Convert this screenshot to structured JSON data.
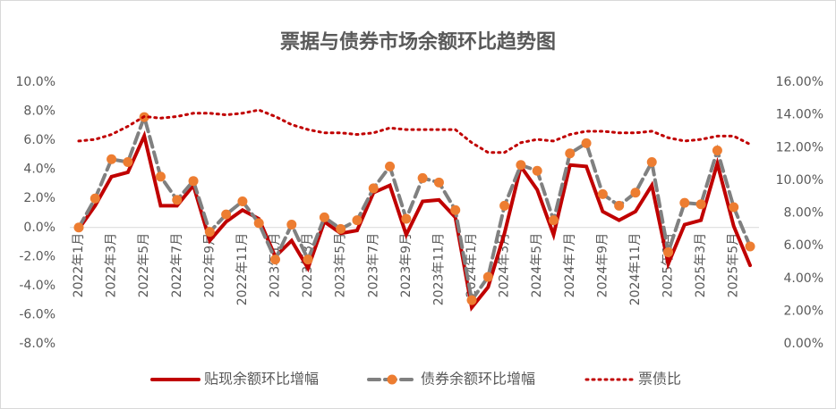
{
  "chart_data": {
    "type": "line",
    "title": "票据与债券市场余额环比趋势图",
    "categories": [
      "2022年1月",
      null,
      "2022年3月",
      null,
      "2022年5月",
      null,
      "2022年7月",
      null,
      "2022年9月",
      null,
      "2022年11月",
      null,
      "2023年1月",
      null,
      "2023年3月",
      null,
      "2023年5月",
      null,
      "2023年7月",
      null,
      "2023年9月",
      null,
      "2023年11月",
      null,
      "2024年1月",
      null,
      "2024年3月",
      null,
      "2024年5月",
      null,
      "2024年7月",
      null,
      "2024年9月",
      null,
      "2024年11月",
      null,
      "2025年1月",
      null,
      "2025年3月",
      null,
      "2025年5月",
      null
    ],
    "series": [
      {
        "name": "贴现余额环比增幅",
        "color": "#c00000",
        "style": "solid",
        "axis": "y",
        "values": [
          -0.1,
          1.5,
          3.5,
          3.8,
          6.3,
          1.5,
          1.5,
          2.9,
          -0.9,
          0.4,
          1.2,
          0.6,
          -2.0,
          -0.9,
          -2.8,
          0.4,
          -0.4,
          -0.2,
          2.4,
          2.9,
          -0.5,
          1.8,
          1.9,
          0.7,
          -5.5,
          -4.1,
          -0.4,
          4.2,
          2.6,
          -0.5,
          4.3,
          4.2,
          1.1,
          0.5,
          1.1,
          2.9,
          -2.5,
          0.2,
          0.5,
          4.4,
          0.1,
          -2.6
        ]
      },
      {
        "name": "债券余额环比增幅",
        "color": "#808080",
        "marker_color": "#ed7d31",
        "style": "dashed",
        "marker": "circle",
        "axis": "y",
        "values": [
          0.0,
          2.0,
          4.7,
          4.5,
          7.6,
          3.5,
          1.9,
          3.2,
          -0.3,
          0.9,
          1.8,
          0.3,
          -2.2,
          0.2,
          -2.2,
          0.7,
          -0.1,
          0.5,
          2.7,
          4.2,
          0.6,
          3.4,
          3.1,
          1.2,
          -5.0,
          -3.4,
          1.5,
          4.3,
          3.9,
          0.5,
          5.1,
          5.8,
          2.3,
          1.5,
          2.4,
          4.5,
          -1.7,
          1.7,
          1.6,
          5.3,
          1.4,
          -1.3
        ]
      },
      {
        "name": "票债比",
        "color": "#c00000",
        "style": "dotted",
        "axis": "y2",
        "values": [
          12.4,
          12.5,
          12.8,
          13.3,
          13.9,
          13.8,
          13.9,
          14.1,
          14.1,
          14.0,
          14.1,
          14.3,
          13.9,
          13.4,
          13.1,
          12.9,
          12.9,
          12.8,
          12.9,
          13.2,
          13.1,
          13.1,
          13.1,
          13.1,
          12.3,
          11.7,
          11.7,
          12.3,
          12.5,
          12.4,
          12.8,
          13.0,
          13.0,
          12.9,
          12.9,
          13.0,
          12.6,
          12.4,
          12.5,
          12.7,
          12.7,
          12.2
        ]
      }
    ],
    "ylim": [
      -8,
      10
    ],
    "yticks": [
      {
        "value": -8,
        "label": "-8.0%"
      },
      {
        "value": -6,
        "label": "-6.0%"
      },
      {
        "value": -4,
        "label": "-4.0%"
      },
      {
        "value": -2,
        "label": "-2.0%"
      },
      {
        "value": 0,
        "label": "0.0%"
      },
      {
        "value": 2,
        "label": "2.0%"
      },
      {
        "value": 4,
        "label": "4.0%"
      },
      {
        "value": 6,
        "label": "6.0%"
      },
      {
        "value": 8,
        "label": "8.0%"
      },
      {
        "value": 10,
        "label": "10.0%"
      }
    ],
    "y2lim": [
      0,
      16
    ],
    "y2ticks": [
      {
        "value": 0,
        "label": "0.00%"
      },
      {
        "value": 2,
        "label": "2.00%"
      },
      {
        "value": 4,
        "label": "4.00%"
      },
      {
        "value": 6,
        "label": "6.00%"
      },
      {
        "value": 8,
        "label": "8.00%"
      },
      {
        "value": 10,
        "label": "10.00%"
      },
      {
        "value": 12,
        "label": "12.00%"
      },
      {
        "value": 14,
        "label": "14.00%"
      },
      {
        "value": 16,
        "label": "16.00%"
      }
    ],
    "legend": "bottom"
  }
}
